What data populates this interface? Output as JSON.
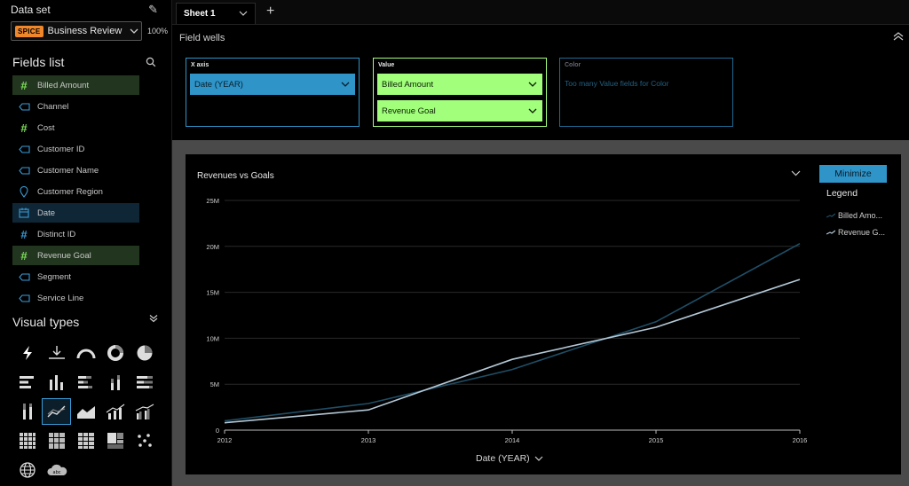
{
  "dataset": {
    "header": "Data set",
    "spice_badge": "SPICE",
    "name": "Business Review",
    "percent": "100%"
  },
  "fields_list": {
    "title": "Fields list",
    "items": [
      {
        "label": "Billed Amount",
        "icon": "measure-icon"
      },
      {
        "label": "Channel",
        "icon": "dimension-tag-icon"
      },
      {
        "label": "Cost",
        "icon": "measure-icon"
      },
      {
        "label": "Customer ID",
        "icon": "dimension-tag-icon"
      },
      {
        "label": "Customer Name",
        "icon": "dimension-tag-icon"
      },
      {
        "label": "Customer Region",
        "icon": "geo-pin-icon"
      },
      {
        "label": "Date",
        "icon": "calendar-icon"
      },
      {
        "label": "Distinct ID",
        "icon": "dimension-hash-icon"
      },
      {
        "label": "Revenue Goal",
        "icon": "measure-icon"
      },
      {
        "label": "Segment",
        "icon": "dimension-tag-icon"
      },
      {
        "label": "Service Line",
        "icon": "dimension-tag-icon"
      }
    ]
  },
  "visual_types": {
    "title": "Visual types"
  },
  "sheet_tab": {
    "label": "Sheet 1"
  },
  "field_wells": {
    "title": "Field wells",
    "x_axis": {
      "label": "X axis",
      "value": "Date (YEAR)"
    },
    "value": {
      "label": "Value",
      "items": [
        "Billed Amount",
        "Revenue Goal"
      ]
    },
    "color": {
      "label": "Color",
      "hint": "Too many Value fields for Color"
    }
  },
  "visual": {
    "title": "Revenues vs Goals",
    "minimize_label": "Minimize",
    "legend_title": "Legend",
    "x_axis_label": "Date (YEAR)"
  },
  "colors": {
    "billed_amount": "#1f4e66",
    "revenue_goal": "#b4c8d6",
    "accent_blue": "#2f94c8",
    "accent_green": "#a2ff7c",
    "spice_orange": "#f0882b"
  },
  "chart_data": {
    "type": "line",
    "x": [
      "2012",
      "2013",
      "2014",
      "2015",
      "2016"
    ],
    "series": [
      {
        "name": "Billed Amo...",
        "values": [
          1.0,
          2.9,
          6.6,
          11.8,
          20.3
        ]
      },
      {
        "name": "Revenue G...",
        "values": [
          0.8,
          2.2,
          7.7,
          11.2,
          16.4
        ]
      }
    ],
    "y_ticks": [
      "0",
      "5M",
      "10M",
      "15M",
      "20M",
      "25M"
    ],
    "ylim": [
      0,
      25
    ],
    "xlabel": "Date (YEAR)",
    "ylabel": "",
    "grid": true,
    "legend": "right"
  }
}
